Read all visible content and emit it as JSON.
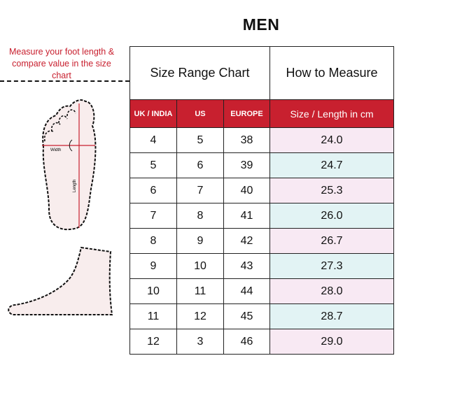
{
  "title": "MEN",
  "note": "Measure your foot length & compare value in the size chart",
  "foot_labels": {
    "width": "Width",
    "length": "Length"
  },
  "table": {
    "group_headers": [
      "Size Range Chart",
      "How to Measure"
    ],
    "columns": [
      "UK / INDIA",
      "US",
      "EUROPE",
      "Size / Length in cm"
    ],
    "rows": [
      [
        "4",
        "5",
        "38",
        "24.0"
      ],
      [
        "5",
        "6",
        "39",
        "24.7"
      ],
      [
        "6",
        "7",
        "40",
        "25.3"
      ],
      [
        "7",
        "8",
        "41",
        "26.0"
      ],
      [
        "8",
        "9",
        "42",
        "26.7"
      ],
      [
        "9",
        "10",
        "43",
        "27.3"
      ],
      [
        "10",
        "11",
        "44",
        "28.0"
      ],
      [
        "11",
        "12",
        "45",
        "28.7"
      ],
      [
        "12",
        "3",
        "46",
        "29.0"
      ]
    ]
  },
  "colors": {
    "accent": "#c8202f",
    "row_pink": "#f8e9f3",
    "row_blue": "#e2f3f4"
  }
}
